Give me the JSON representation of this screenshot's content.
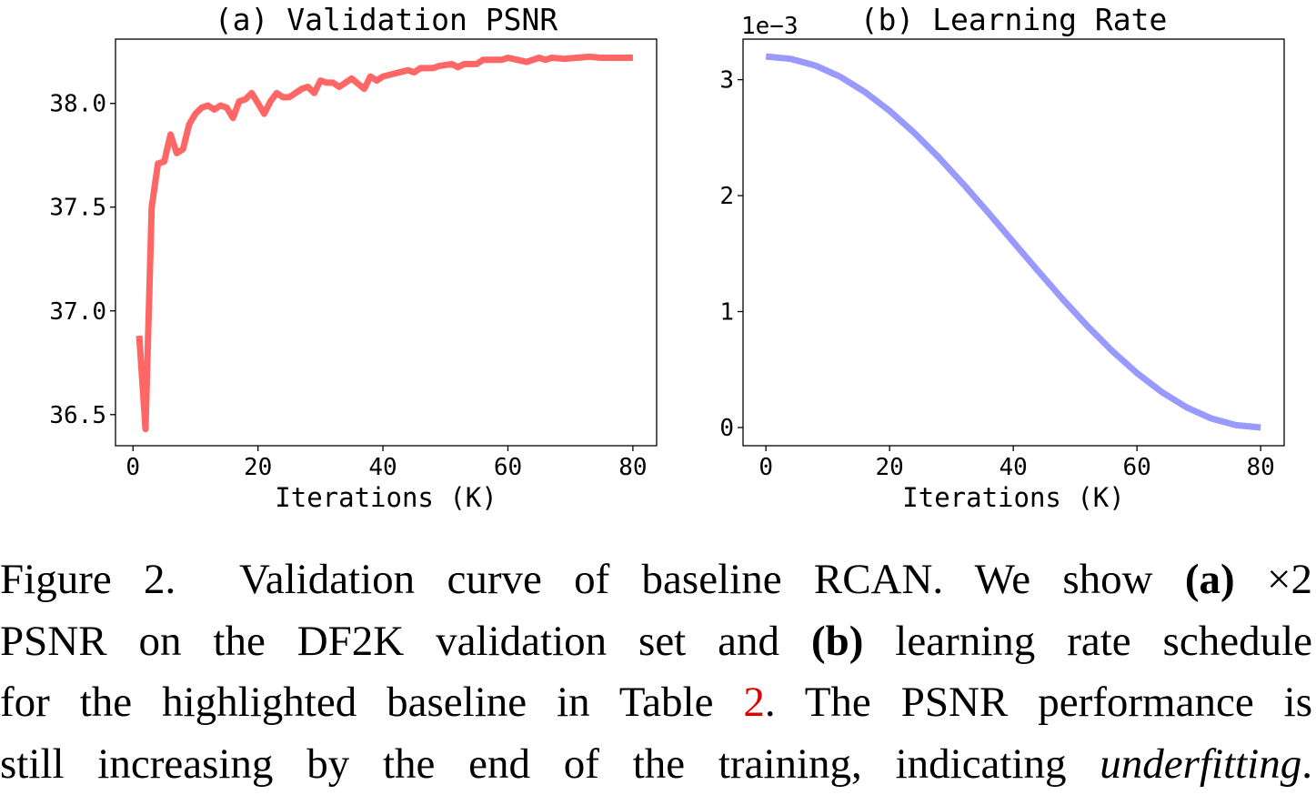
{
  "chart_data": [
    {
      "type": "line",
      "title": "(a) Validation PSNR",
      "xlabel": "Iterations (K)",
      "ylabel": "",
      "xlim": [
        -2.8,
        83.8
      ],
      "ylim": [
        36.35,
        38.31
      ],
      "xticks": [
        0,
        20,
        40,
        60,
        80
      ],
      "yticks": [
        36.5,
        37.0,
        37.5,
        38.0
      ],
      "ytick_labels": [
        "36.5",
        "37.0",
        "37.5",
        "38.0"
      ],
      "color": "#ff6666",
      "x": [
        1,
        2,
        3,
        4,
        5,
        6,
        7,
        8,
        9,
        10,
        11,
        12,
        13,
        14,
        15,
        16,
        17,
        18,
        19,
        20,
        21,
        22,
        23,
        24,
        25,
        26,
        27,
        28,
        29,
        30,
        31,
        32,
        33,
        35,
        37,
        38,
        39,
        40,
        42,
        44,
        45,
        46,
        48,
        49,
        51,
        52,
        53,
        55,
        56,
        59,
        60,
        63,
        65,
        66,
        67,
        69,
        71,
        73,
        75,
        80
      ],
      "y": [
        36.88,
        36.43,
        37.5,
        37.71,
        37.72,
        37.85,
        37.76,
        37.78,
        37.9,
        37.95,
        37.98,
        37.99,
        37.97,
        37.99,
        37.98,
        37.93,
        38.01,
        38.02,
        38.05,
        38.0,
        37.95,
        38.01,
        38.05,
        38.03,
        38.03,
        38.05,
        38.07,
        38.08,
        38.05,
        38.11,
        38.1,
        38.1,
        38.08,
        38.12,
        38.07,
        38.13,
        38.11,
        38.13,
        38.145,
        38.16,
        38.15,
        38.17,
        38.17,
        38.18,
        38.19,
        38.175,
        38.19,
        38.19,
        38.21,
        38.21,
        38.22,
        38.2,
        38.22,
        38.21,
        38.22,
        38.215,
        38.22,
        38.225,
        38.22,
        38.22
      ]
    },
    {
      "type": "line",
      "title": "(b) Learning Rate",
      "scale_label": "1e−3",
      "xlabel": "Iterations (K)",
      "ylabel": "",
      "xlim": [
        -3.7,
        83.8
      ],
      "ylim": [
        -0.157,
        3.35
      ],
      "xticks": [
        0,
        20,
        40,
        60,
        80
      ],
      "yticks": [
        0,
        1,
        2,
        3
      ],
      "ytick_labels": [
        "0",
        "1",
        "2",
        "3"
      ],
      "color": "#9999ff",
      "x": [
        0,
        4,
        8,
        12,
        16,
        20,
        24,
        28,
        32,
        36,
        40,
        44,
        48,
        52,
        56,
        60,
        64,
        68,
        72,
        76,
        80
      ],
      "y": [
        3.2,
        3.18,
        3.122,
        3.026,
        2.894,
        2.731,
        2.54,
        2.326,
        2.094,
        1.85,
        1.6,
        1.35,
        1.106,
        0.874,
        0.66,
        0.469,
        0.306,
        0.174,
        0.078,
        0.02,
        0.0
      ]
    }
  ],
  "caption": {
    "line1": {
      "a": "Figure 2.  Validation curve of baseline RCAN. We show ",
      "b": "(a)",
      "c": " ×2"
    },
    "line2": {
      "a": "PSNR on the DF2K validation set and ",
      "b": "(b)",
      "c": " learning rate schedule"
    },
    "line3": {
      "a": "for the highlighted baseline in Table ",
      "b": "2",
      "c": ". The PSNR performance is"
    },
    "line4": {
      "a": "still increasing by the end of the training, indicating ",
      "b": "underfitting",
      "c": "."
    }
  }
}
